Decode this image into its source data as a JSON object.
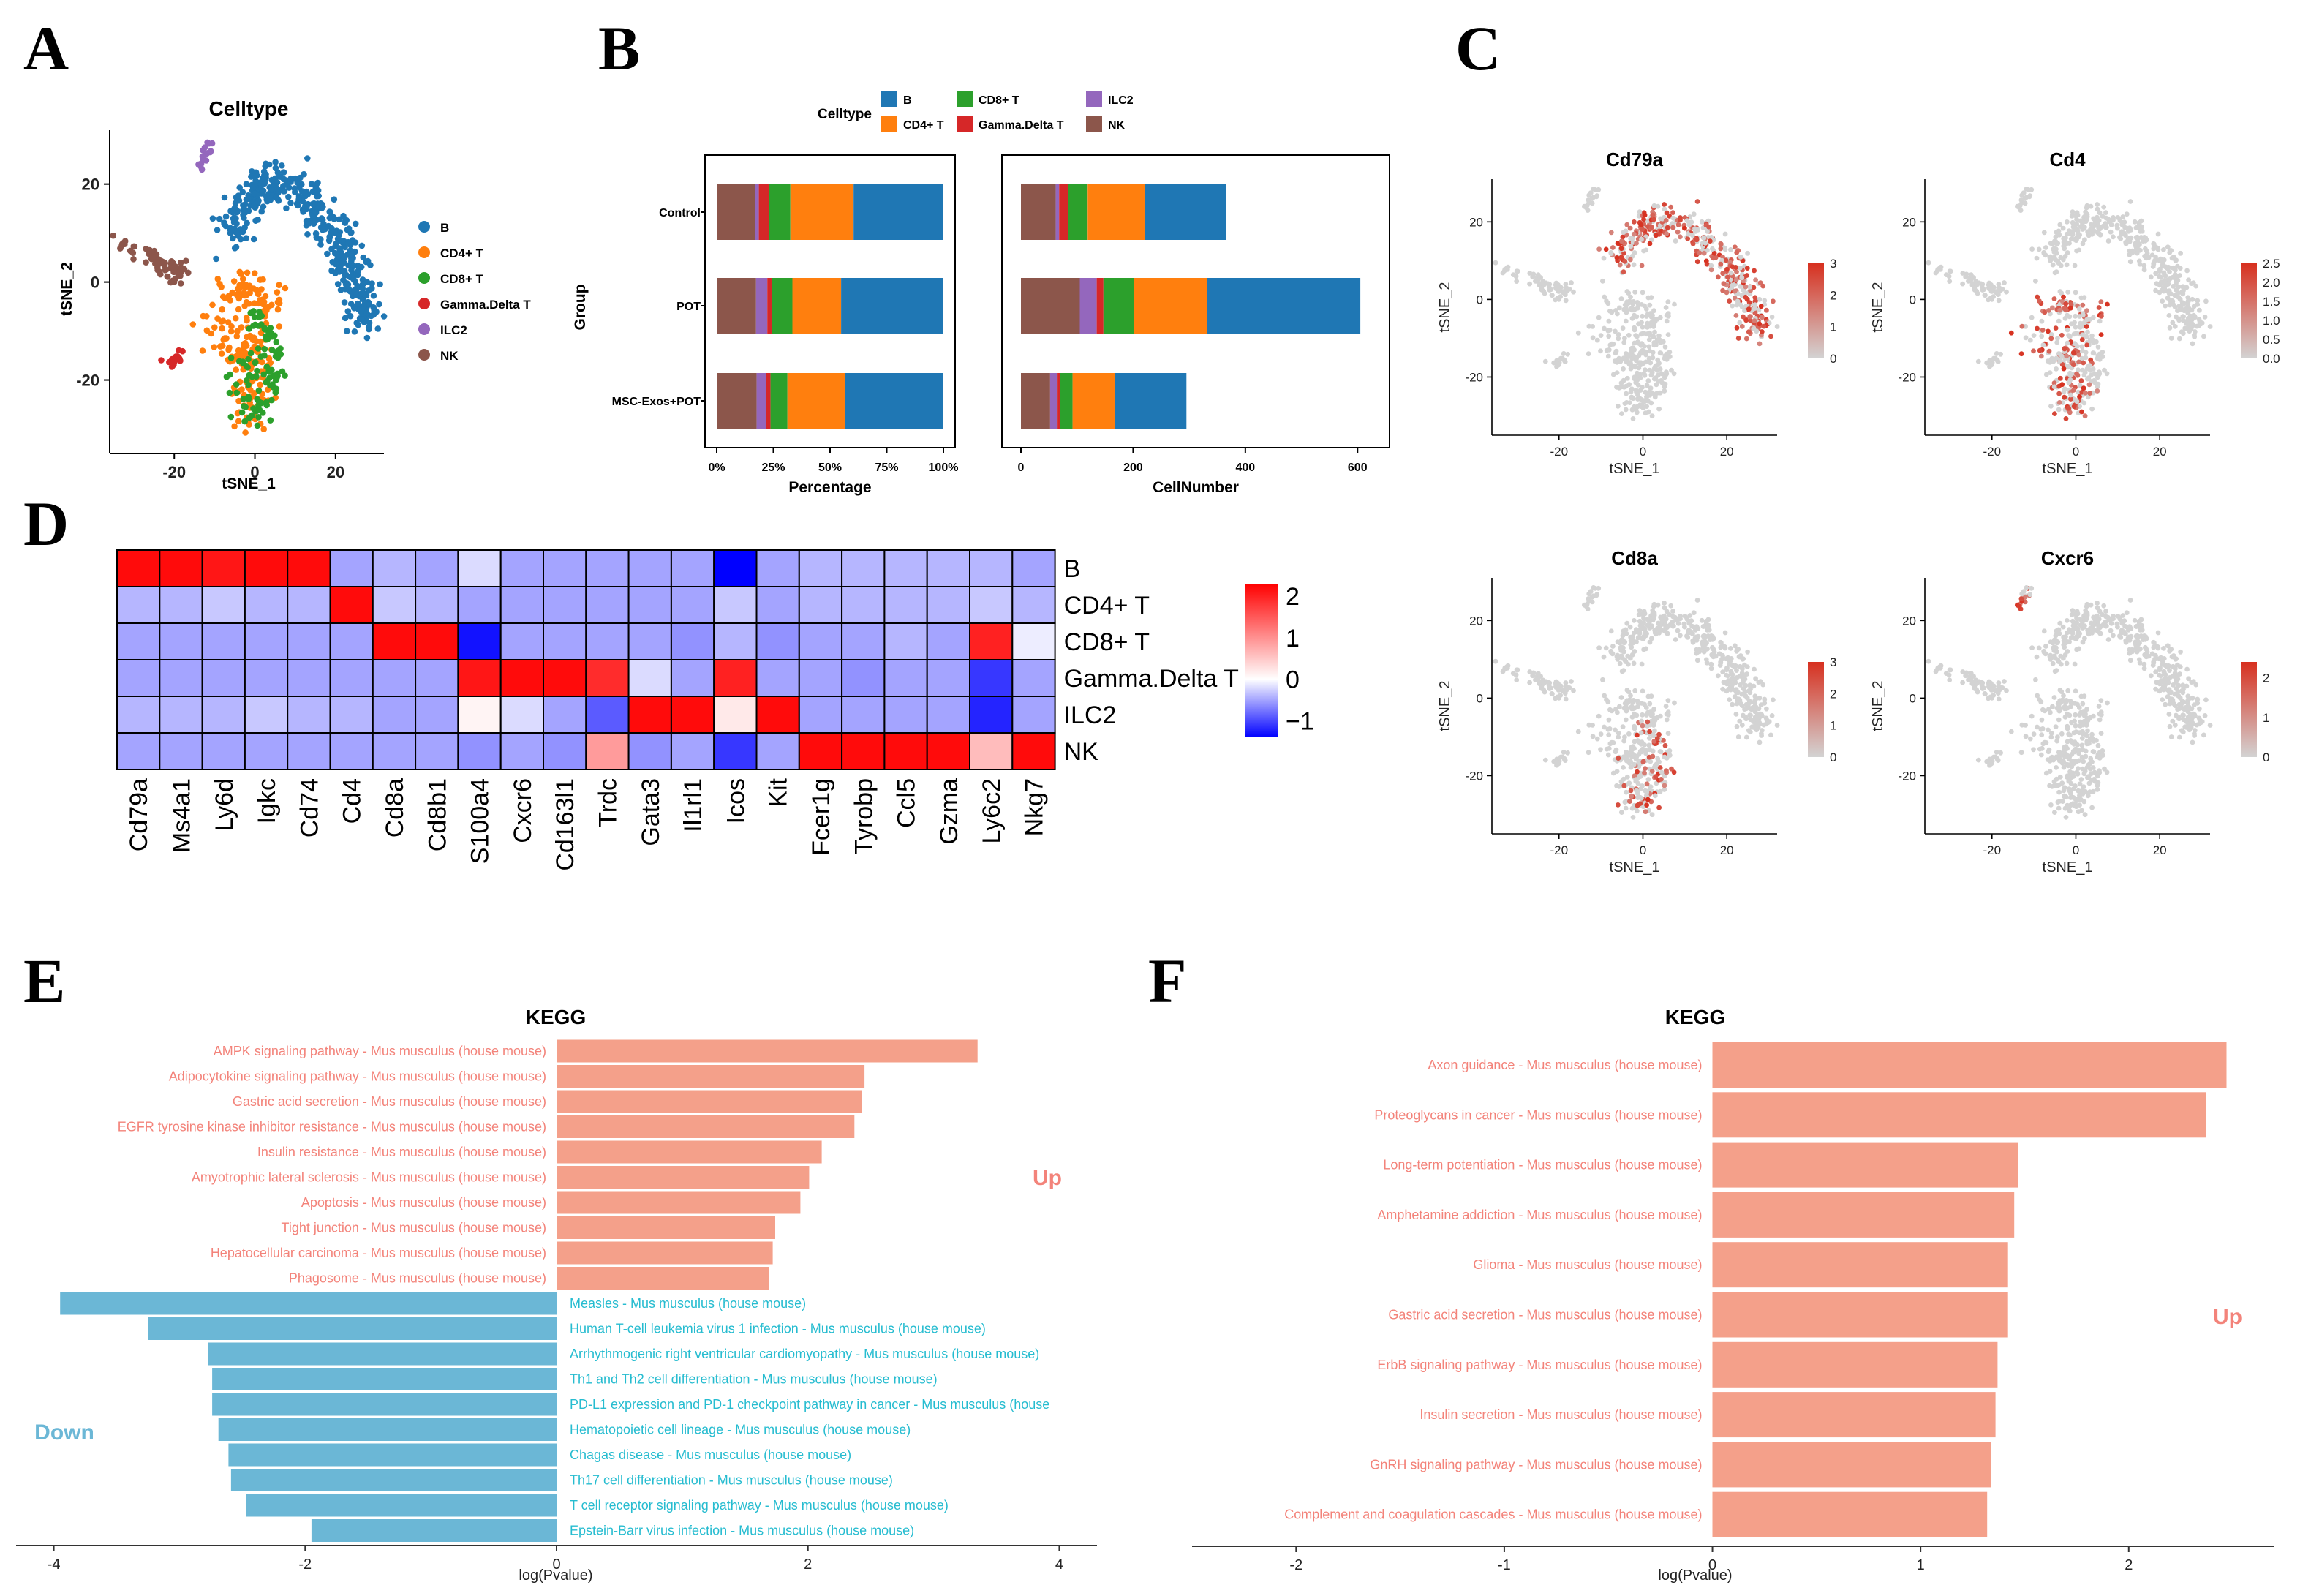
{
  "panel_labels": [
    "A",
    "B",
    "C",
    "D",
    "E",
    "F"
  ],
  "colors": {
    "B": "#1f77b4",
    "CD4+ T": "#ff7f0e",
    "CD8+ T": "#2ca02c",
    "Gamma.Delta T": "#d62728",
    "ILC2": "#9467bd",
    "NK": "#8c564b",
    "up": "#f4a08a",
    "up_text": "#f3837a",
    "down": "#6bb7d6",
    "down_text": "#26bcd0",
    "grey": "#d3d3d3",
    "heat_low": "#0000ff",
    "heat_mid": "#ffffff",
    "heat_high": "#ff0000"
  },
  "chart_data": [
    {
      "id": "A",
      "type": "scatter",
      "title": "Celltype",
      "xlabel": "tSNE_1",
      "ylabel": "tSNE_2",
      "xticks": [
        -20,
        0,
        20
      ],
      "yticks": [
        -20,
        0,
        20
      ],
      "xlim": [
        -36,
        32
      ],
      "ylim": [
        -35,
        31
      ],
      "legend": {
        "position": "right",
        "entries": [
          "B",
          "CD4+ T",
          "CD8+ T",
          "Gamma.Delta T",
          "ILC2",
          "NK"
        ]
      }
    },
    {
      "id": "B",
      "type": "bar",
      "orientation": "horizontal-stacked",
      "legend": {
        "title": "Celltype",
        "position": "top",
        "entries": [
          "B",
          "CD8+ T",
          "ILC2",
          "CD4+ T",
          "Gamma.Delta T",
          "NK"
        ]
      },
      "ylabel": "Group",
      "categories": [
        "Control",
        "POT",
        "MSC-Exos+POT"
      ],
      "stack_order": [
        "NK",
        "ILC2",
        "Gamma.Delta T",
        "CD8+ T",
        "CD4+ T",
        "B"
      ],
      "counts": {
        "Control": [
          62,
          6,
          16,
          35,
          102,
          145
        ],
        "POT": [
          105,
          30,
          12,
          55,
          130,
          273
        ],
        "MSC-Exos+POT": [
          52,
          12,
          6,
          22,
          75,
          128
        ]
      },
      "left": {
        "xlabel": "Percentage",
        "xticks": [
          "0%",
          "25%",
          "50%",
          "75%",
          "100%"
        ]
      },
      "right": {
        "xlabel": "CellNumber",
        "xticks": [
          0,
          200,
          400,
          600
        ],
        "xlim": [
          0,
          620
        ]
      }
    },
    {
      "id": "C",
      "type": "scatter",
      "subplots": [
        {
          "gene": "Cd79a",
          "target": "B",
          "legend_ticks": [
            "3",
            "2",
            "1",
            "0"
          ],
          "max": 3
        },
        {
          "gene": "Cd4",
          "target": "CD4+ T",
          "legend_ticks": [
            "2.5",
            "2.0",
            "1.5",
            "1.0",
            "0.5",
            "0.0"
          ],
          "max": 2.5
        },
        {
          "gene": "Cd8a",
          "target": "CD8+ T",
          "legend_ticks": [
            "3",
            "2",
            "1",
            "0"
          ],
          "max": 3
        },
        {
          "gene": "Cxcr6",
          "target": "ILC2",
          "legend_ticks": [
            "2",
            "1",
            "0"
          ],
          "max": 2.4
        }
      ],
      "xlabel": "tSNE_1",
      "ylabel": "tSNE_2",
      "xticks": [
        -20,
        0,
        20
      ],
      "yticks": [
        -20,
        0,
        20
      ]
    },
    {
      "id": "D",
      "type": "heatmap",
      "genes": [
        "Cd79a",
        "Ms4a1",
        "Ly6d",
        "Igkc",
        "Cd74",
        "Cd4",
        "Cd8a",
        "Cd8b1",
        "S100a4",
        "Cxcr6",
        "Cd163l1",
        "Trdc",
        "Gata3",
        "Il1rl1",
        "Icos",
        "Kit",
        "Fcer1g",
        "Tyrobp",
        "Ccl5",
        "Gzma",
        "Ly6c2",
        "Nkg7"
      ],
      "celltypes": [
        "B",
        "CD4+ T",
        "CD8+ T",
        "Gamma.Delta T",
        "ILC2",
        "NK"
      ],
      "values": [
        [
          2.2,
          2.2,
          2.1,
          2.2,
          2.2,
          -0.5,
          -0.4,
          -0.5,
          -0.2,
          -0.5,
          -0.5,
          -0.5,
          -0.5,
          -0.5,
          -1.4,
          -0.5,
          -0.4,
          -0.4,
          -0.4,
          -0.4,
          -0.4,
          -0.5
        ],
        [
          -0.4,
          -0.4,
          -0.3,
          -0.4,
          -0.4,
          2.2,
          -0.3,
          -0.4,
          -0.5,
          -0.5,
          -0.5,
          -0.5,
          -0.5,
          -0.5,
          -0.3,
          -0.5,
          -0.4,
          -0.4,
          -0.4,
          -0.4,
          -0.3,
          -0.4
        ],
        [
          -0.5,
          -0.5,
          -0.5,
          -0.5,
          -0.5,
          -0.5,
          2.2,
          2.2,
          -1.3,
          -0.5,
          -0.5,
          -0.5,
          -0.5,
          -0.6,
          -0.4,
          -0.6,
          -0.5,
          -0.5,
          -0.4,
          -0.5,
          2.0,
          -0.1
        ],
        [
          -0.5,
          -0.5,
          -0.5,
          -0.5,
          -0.5,
          -0.5,
          -0.5,
          -0.5,
          2.1,
          2.2,
          2.2,
          1.9,
          -0.2,
          -0.5,
          2.0,
          -0.5,
          -0.5,
          -0.6,
          -0.5,
          -0.5,
          -1.1,
          -0.5
        ],
        [
          -0.4,
          -0.4,
          -0.4,
          -0.3,
          -0.4,
          -0.4,
          -0.5,
          -0.5,
          0.1,
          -0.2,
          -0.5,
          -0.9,
          2.2,
          2.2,
          0.2,
          2.2,
          -0.5,
          -0.5,
          -0.5,
          -0.5,
          -1.2,
          -0.5
        ],
        [
          -0.5,
          -0.5,
          -0.5,
          -0.5,
          -0.5,
          -0.5,
          -0.5,
          -0.5,
          -0.6,
          -0.5,
          -0.6,
          0.9,
          -0.6,
          -0.5,
          -1.1,
          -0.5,
          2.2,
          2.2,
          2.2,
          2.2,
          0.6,
          2.2
        ]
      ],
      "legend_ticks": [
        2,
        1,
        0,
        -1
      ],
      "range": [
        -1.4,
        2.3
      ]
    },
    {
      "id": "E",
      "type": "bar",
      "orientation": "horizontal",
      "title": "KEGG",
      "xlabel": "log(Pvalue)",
      "xticks": [
        -4,
        -2,
        0,
        2,
        4
      ],
      "xlim": [
        -4.3,
        4.3
      ],
      "up_label": "Up",
      "down_label": "Down",
      "categories": [
        "AMPK signaling pathway - Mus musculus (house mouse)",
        "Adipocytokine signaling pathway - Mus musculus (house mouse)",
        "Gastric acid secretion - Mus musculus (house mouse)",
        "EGFR tyrosine kinase inhibitor resistance - Mus musculus (house mouse)",
        "Insulin resistance - Mus musculus (house mouse)",
        "Amyotrophic lateral sclerosis - Mus musculus (house mouse)",
        "Apoptosis - Mus musculus (house mouse)",
        "Tight junction - Mus musculus (house mouse)",
        "Hepatocellular carcinoma - Mus musculus (house mouse)",
        "Phagosome - Mus musculus (house mouse)",
        "Measles - Mus musculus (house mouse)",
        "Human T-cell leukemia virus 1 infection - Mus musculus (house mouse)",
        "Arrhythmogenic right ventricular cardiomyopathy - Mus musculus (house mouse)",
        "Th1 and Th2 cell differentiation - Mus musculus (house mouse)",
        "PD-L1 expression and PD-1 checkpoint pathway in cancer - Mus musculus (house",
        "Hematopoietic cell lineage - Mus musculus (house mouse)",
        "Chagas disease - Mus musculus (house mouse)",
        "Th17 cell differentiation - Mus musculus (house mouse)",
        "T cell receptor signaling pathway - Mus musculus (house mouse)",
        "Epstein-Barr virus infection - Mus musculus (house mouse)"
      ],
      "values": [
        3.35,
        2.45,
        2.43,
        2.37,
        2.11,
        2.01,
        1.94,
        1.74,
        1.72,
        1.69,
        -3.95,
        -3.25,
        -2.77,
        -2.74,
        -2.74,
        -2.69,
        -2.61,
        -2.59,
        -2.47,
        -1.95
      ]
    },
    {
      "id": "F",
      "type": "bar",
      "orientation": "horizontal",
      "title": "KEGG",
      "xlabel": "log(Pvalue)",
      "xticks": [
        -2,
        -1,
        0,
        1,
        2
      ],
      "xlim": [
        -2.5,
        2.7
      ],
      "up_label": "Up",
      "categories": [
        "Axon guidance - Mus musculus (house mouse)",
        "Proteoglycans in cancer - Mus musculus (house mouse)",
        "Long-term potentiation - Mus musculus (house mouse)",
        "Amphetamine addiction - Mus musculus (house mouse)",
        "Glioma - Mus musculus (house mouse)",
        "Gastric acid secretion - Mus musculus (house mouse)",
        "ErbB signaling pathway - Mus musculus (house mouse)",
        "Insulin secretion - Mus musculus (house mouse)",
        "GnRH signaling pathway - Mus musculus (house mouse)",
        "Complement and coagulation cascades - Mus musculus (house mouse)"
      ],
      "values": [
        2.47,
        2.37,
        1.47,
        1.45,
        1.42,
        1.42,
        1.37,
        1.36,
        1.34,
        1.32
      ]
    }
  ]
}
